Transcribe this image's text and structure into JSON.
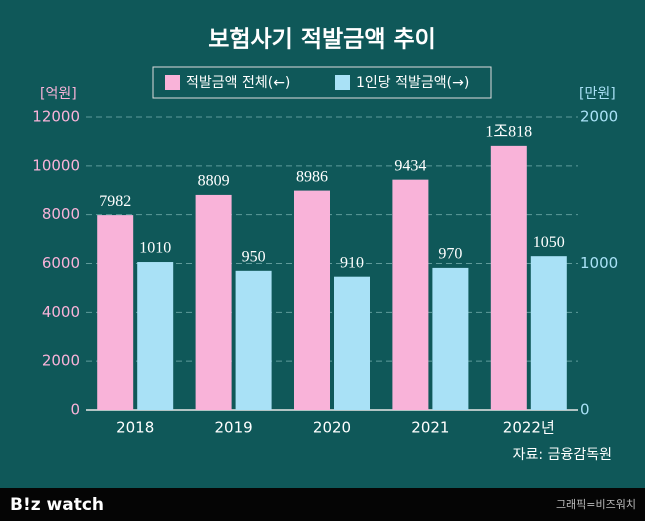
{
  "chart_data": {
    "type": "bar",
    "title": "보험사기 적발금액 추이",
    "categories": [
      "2018",
      "2019",
      "2020",
      "2021",
      "2022년"
    ],
    "series": [
      {
        "name": "적발금액 전체(←)",
        "color": "#f9b3d9",
        "values": [
          7982,
          8809,
          8986,
          9434,
          10818
        ],
        "value_labels": [
          "7982",
          "8809",
          "8986",
          "9434",
          "1조818"
        ]
      },
      {
        "name": "1인당 적발금액(→)",
        "color": "#a9e1f6",
        "axis": "y2",
        "values": [
          1010,
          950,
          910,
          970,
          1050
        ]
      }
    ],
    "y_label": "[억원]",
    "y2_label": "[만원]",
    "ylim": [
      0,
      12000
    ],
    "yticks": [
      0,
      2000,
      4000,
      6000,
      8000,
      10000,
      12000
    ],
    "y2lim": [
      0,
      2000
    ],
    "y2ticks": [
      0,
      1000,
      2000
    ],
    "grid": true,
    "legend": "top",
    "source": "자료: 금융감독원"
  },
  "footer": {
    "logo": "B!z watch",
    "credit": "그래픽=비즈워치"
  }
}
